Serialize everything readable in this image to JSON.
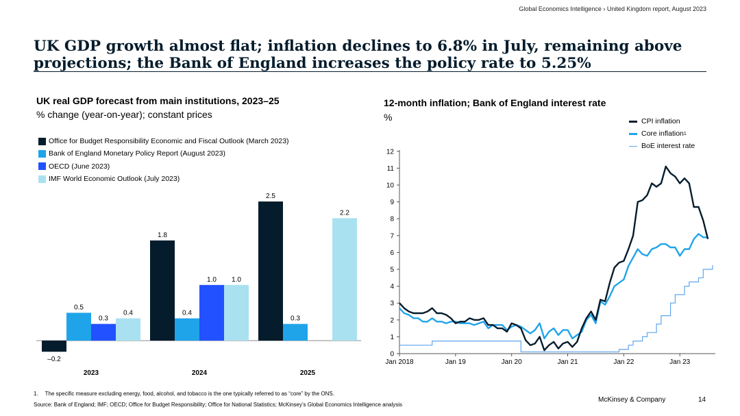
{
  "header": {
    "breadcrumb": "Global Economics Intelligence  › United Kingdom report, August 2023",
    "headline": "UK GDP growth almost flat; inflation declines to 6.8% in July, remaining above projections; the Bank of England increases the policy rate to 5.25%"
  },
  "colors": {
    "obr": "#051c2c",
    "boe": "#1fa4ea",
    "oecd": "#2251ff",
    "imf": "#a9e1f0"
  },
  "chart_data": [
    {
      "type": "bar",
      "title": "UK real GDP forecast from main institutions, 2023–25",
      "subtitle": "% change (year-on-year); constant prices",
      "categories": [
        "2023",
        "2024",
        "2025"
      ],
      "series": [
        {
          "name": "Office for Budget Responsibility Economic and Fiscal Outlook (March 2023)",
          "color": "#051c2c",
          "values": [
            -0.2,
            1.8,
            2.5
          ],
          "labels": [
            "–0.2",
            "1.8",
            "2.5"
          ]
        },
        {
          "name": "Bank of England Monetary Policy Report (August 2023)",
          "color": "#1fa4ea",
          "values": [
            0.5,
            0.4,
            0.3
          ],
          "labels": [
            "0.5",
            "0.4",
            "0.3"
          ]
        },
        {
          "name": "OECD (June 2023)",
          "color": "#2251ff",
          "values": [
            0.3,
            1.0,
            null
          ],
          "labels": [
            "0.3",
            "1.0",
            ""
          ]
        },
        {
          "name": "IMF World Economic Outlook (July 2023)",
          "color": "#a9e1f0",
          "values": [
            0.4,
            1.0,
            2.2
          ],
          "labels": [
            "0.4",
            "1.0",
            "2.2"
          ]
        }
      ],
      "legend_position": "top-left",
      "grid": false
    },
    {
      "type": "line",
      "title": "12-month inflation; Bank of England interest rate",
      "ylabel": "%",
      "ylim": [
        0,
        12
      ],
      "yticks": [
        "0",
        "1",
        "2",
        "3",
        "4",
        "5",
        "6",
        "7",
        "8",
        "9",
        "10",
        "11",
        "12"
      ],
      "xlim": [
        "2018-01",
        "2023-07"
      ],
      "xticks": [
        {
          "date": "2018-01",
          "label": "Jan 2018"
        },
        {
          "date": "2019-01",
          "label": "Jan 19"
        },
        {
          "date": "2020-01",
          "label": "Jan 20"
        },
        {
          "date": "2021-01",
          "label": "Jan 21"
        },
        {
          "date": "2022-01",
          "label": "Jan 22"
        },
        {
          "date": "2023-01",
          "label": "Jan 23"
        }
      ],
      "legend_position": "top-right",
      "grid": false,
      "series": [
        {
          "name": "CPI inflation",
          "legend_label": "CPI inflation",
          "color": "#051c2c",
          "points": [
            [
              "2018-01",
              3.0
            ],
            [
              "2018-02",
              2.7
            ],
            [
              "2018-03",
              2.5
            ],
            [
              "2018-04",
              2.4
            ],
            [
              "2018-05",
              2.4
            ],
            [
              "2018-06",
              2.4
            ],
            [
              "2018-07",
              2.5
            ],
            [
              "2018-08",
              2.7
            ],
            [
              "2018-09",
              2.4
            ],
            [
              "2018-10",
              2.4
            ],
            [
              "2018-11",
              2.3
            ],
            [
              "2018-12",
              2.1
            ],
            [
              "2019-01",
              1.8
            ],
            [
              "2019-02",
              1.9
            ],
            [
              "2019-03",
              1.9
            ],
            [
              "2019-04",
              2.1
            ],
            [
              "2019-05",
              2.0
            ],
            [
              "2019-06",
              2.0
            ],
            [
              "2019-07",
              2.1
            ],
            [
              "2019-08",
              1.7
            ],
            [
              "2019-09",
              1.7
            ],
            [
              "2019-10",
              1.5
            ],
            [
              "2019-11",
              1.5
            ],
            [
              "2019-12",
              1.3
            ],
            [
              "2020-01",
              1.8
            ],
            [
              "2020-02",
              1.7
            ],
            [
              "2020-03",
              1.5
            ],
            [
              "2020-04",
              0.8
            ],
            [
              "2020-05",
              0.5
            ],
            [
              "2020-06",
              0.6
            ],
            [
              "2020-07",
              1.0
            ],
            [
              "2020-08",
              0.2
            ],
            [
              "2020-09",
              0.5
            ],
            [
              "2020-10",
              0.7
            ],
            [
              "2020-11",
              0.3
            ],
            [
              "2020-12",
              0.6
            ],
            [
              "2021-01",
              0.7
            ],
            [
              "2021-02",
              0.4
            ],
            [
              "2021-03",
              0.7
            ],
            [
              "2021-04",
              1.5
            ],
            [
              "2021-05",
              2.1
            ],
            [
              "2021-06",
              2.5
            ],
            [
              "2021-07",
              2.0
            ],
            [
              "2021-08",
              3.2
            ],
            [
              "2021-09",
              3.1
            ],
            [
              "2021-10",
              4.2
            ],
            [
              "2021-11",
              5.1
            ],
            [
              "2021-12",
              5.4
            ],
            [
              "2022-01",
              5.5
            ],
            [
              "2022-02",
              6.2
            ],
            [
              "2022-03",
              7.0
            ],
            [
              "2022-04",
              9.0
            ],
            [
              "2022-05",
              9.1
            ],
            [
              "2022-06",
              9.4
            ],
            [
              "2022-07",
              10.1
            ],
            [
              "2022-08",
              9.9
            ],
            [
              "2022-09",
              10.1
            ],
            [
              "2022-10",
              11.1
            ],
            [
              "2022-11",
              10.7
            ],
            [
              "2022-12",
              10.5
            ],
            [
              "2023-01",
              10.1
            ],
            [
              "2023-02",
              10.4
            ],
            [
              "2023-03",
              10.1
            ],
            [
              "2023-04",
              8.7
            ],
            [
              "2023-05",
              8.7
            ],
            [
              "2023-06",
              7.9
            ],
            [
              "2023-07",
              6.8
            ]
          ]
        },
        {
          "name": "Core inflation",
          "legend_label": "Core inflation",
          "legend_sup": "1",
          "color": "#1fa4ea",
          "points": [
            [
              "2018-01",
              2.7
            ],
            [
              "2018-02",
              2.4
            ],
            [
              "2018-03",
              2.3
            ],
            [
              "2018-04",
              2.1
            ],
            [
              "2018-05",
              2.1
            ],
            [
              "2018-06",
              1.9
            ],
            [
              "2018-07",
              1.9
            ],
            [
              "2018-08",
              2.1
            ],
            [
              "2018-09",
              1.9
            ],
            [
              "2018-10",
              1.9
            ],
            [
              "2018-11",
              1.8
            ],
            [
              "2018-12",
              1.9
            ],
            [
              "2019-01",
              1.9
            ],
            [
              "2019-02",
              1.8
            ],
            [
              "2019-03",
              1.8
            ],
            [
              "2019-04",
              1.8
            ],
            [
              "2019-05",
              1.7
            ],
            [
              "2019-06",
              1.8
            ],
            [
              "2019-07",
              1.9
            ],
            [
              "2019-08",
              1.5
            ],
            [
              "2019-09",
              1.7
            ],
            [
              "2019-10",
              1.7
            ],
            [
              "2019-11",
              1.7
            ],
            [
              "2019-12",
              1.4
            ],
            [
              "2020-01",
              1.6
            ],
            [
              "2020-02",
              1.7
            ],
            [
              "2020-03",
              1.6
            ],
            [
              "2020-04",
              1.4
            ],
            [
              "2020-05",
              1.2
            ],
            [
              "2020-06",
              1.4
            ],
            [
              "2020-07",
              1.8
            ],
            [
              "2020-08",
              0.9
            ],
            [
              "2020-09",
              1.3
            ],
            [
              "2020-10",
              1.5
            ],
            [
              "2020-11",
              1.1
            ],
            [
              "2020-12",
              1.4
            ],
            [
              "2021-01",
              1.4
            ],
            [
              "2021-02",
              0.9
            ],
            [
              "2021-03",
              1.1
            ],
            [
              "2021-04",
              1.3
            ],
            [
              "2021-05",
              2.0
            ],
            [
              "2021-06",
              2.3
            ],
            [
              "2021-07",
              1.8
            ],
            [
              "2021-08",
              3.1
            ],
            [
              "2021-09",
              2.9
            ],
            [
              "2021-10",
              3.4
            ],
            [
              "2021-11",
              4.0
            ],
            [
              "2021-12",
              4.2
            ],
            [
              "2022-01",
              4.4
            ],
            [
              "2022-02",
              5.2
            ],
            [
              "2022-03",
              5.7
            ],
            [
              "2022-04",
              6.2
            ],
            [
              "2022-05",
              5.9
            ],
            [
              "2022-06",
              5.8
            ],
            [
              "2022-07",
              6.2
            ],
            [
              "2022-08",
              6.3
            ],
            [
              "2022-09",
              6.5
            ],
            [
              "2022-10",
              6.5
            ],
            [
              "2022-11",
              6.3
            ],
            [
              "2022-12",
              6.3
            ],
            [
              "2023-01",
              5.8
            ],
            [
              "2023-02",
              6.2
            ],
            [
              "2023-03",
              6.2
            ],
            [
              "2023-04",
              6.8
            ],
            [
              "2023-05",
              7.1
            ],
            [
              "2023-06",
              6.9
            ],
            [
              "2023-07",
              6.9
            ]
          ]
        },
        {
          "name": "BoE interest rate",
          "legend_label": "BoE interest rate",
          "color": "#5fa5ee",
          "points": [
            [
              "2018-01",
              0.5
            ],
            [
              "2018-07",
              0.5
            ],
            [
              "2018-08",
              0.75
            ],
            [
              "2020-02",
              0.75
            ],
            [
              "2020-03",
              0.1
            ],
            [
              "2021-11",
              0.1
            ],
            [
              "2021-12",
              0.25
            ],
            [
              "2022-01",
              0.25
            ],
            [
              "2022-02",
              0.5
            ],
            [
              "2022-03",
              0.75
            ],
            [
              "2022-04",
              0.75
            ],
            [
              "2022-05",
              1.0
            ],
            [
              "2022-06",
              1.25
            ],
            [
              "2022-07",
              1.25
            ],
            [
              "2022-08",
              1.75
            ],
            [
              "2022-09",
              2.25
            ],
            [
              "2022-10",
              2.25
            ],
            [
              "2022-11",
              3.0
            ],
            [
              "2022-12",
              3.5
            ],
            [
              "2023-01",
              3.5
            ],
            [
              "2023-02",
              4.0
            ],
            [
              "2023-03",
              4.25
            ],
            [
              "2023-04",
              4.25
            ],
            [
              "2023-05",
              4.5
            ],
            [
              "2023-06",
              5.0
            ],
            [
              "2023-07",
              5.0
            ],
            [
              "2023-08",
              5.25
            ]
          ]
        }
      ]
    }
  ],
  "footer": {
    "footnote_number": "1.",
    "footnote_text": "The specific measure excluding energy, food, alcohol, and tobacco is the one typically referred to as “core” by the ONS.",
    "source": "Source: Bank of England;  IMF;  OECD;  Office for Budget Responsibility;  Office for National Statistics; McKinsey’s Global Economics Intelligence analysis",
    "brand": "McKinsey & Company",
    "page_number": "14"
  }
}
